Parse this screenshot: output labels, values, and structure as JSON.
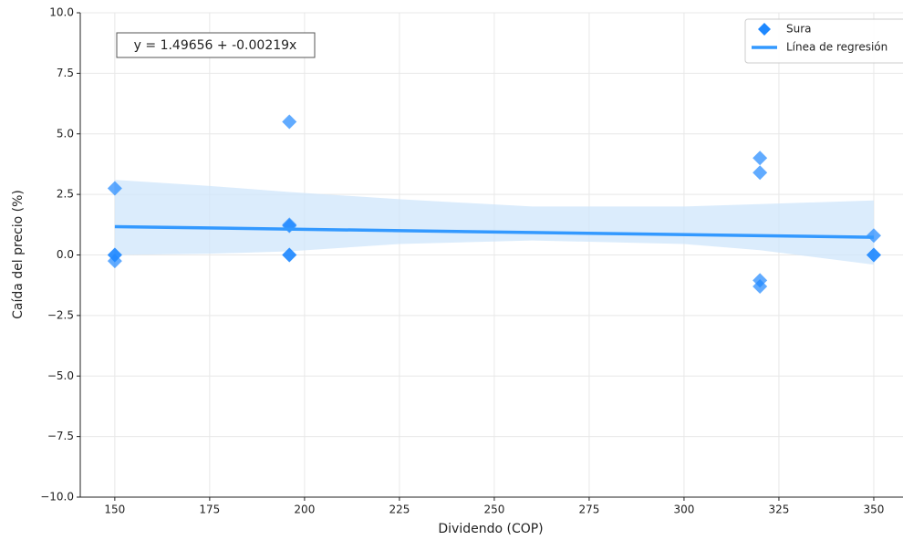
{
  "chart_data": {
    "type": "scatter",
    "xlabel": "Dividendo (COP)",
    "ylabel": "Caída del precio (%)",
    "annotation": "y = 1.49656 + -0.00219x",
    "xlim": [
      140.9,
      357.7
    ],
    "ylim": [
      -10,
      10
    ],
    "xticks": [
      150,
      175,
      200,
      225,
      250,
      275,
      300,
      325,
      350
    ],
    "yticks": [
      {
        "value": -10,
        "label": "−10.0"
      },
      {
        "value": -7.5,
        "label": "−7.5"
      },
      {
        "value": -5,
        "label": "−5.0"
      },
      {
        "value": -2.5,
        "label": "−2.5"
      },
      {
        "value": 0,
        "label": "0.0"
      },
      {
        "value": 2.5,
        "label": "2.5"
      },
      {
        "value": 5,
        "label": "5.0"
      },
      {
        "value": 7.5,
        "label": "7.5"
      },
      {
        "value": 10,
        "label": "10.0"
      }
    ],
    "grid": true,
    "legend": "upper right",
    "series": [
      {
        "name": "Sura",
        "color": "#1e88ff",
        "x": [
          150,
          150,
          150,
          150,
          196,
          196,
          196,
          196,
          196,
          320,
          320,
          320,
          320,
          350,
          350,
          350
        ],
        "values": [
          2.75,
          0,
          0,
          -0.25,
          5.5,
          1.2,
          1.25,
          0,
          0,
          4.0,
          3.4,
          -1.05,
          -1.3,
          0.8,
          0,
          0
        ]
      },
      {
        "name": "Línea de regresión",
        "color": "#3399ff",
        "x": [
          150,
          350
        ],
        "values": [
          1.168,
          0.73
        ]
      }
    ],
    "confidence_band": {
      "color": "#cfe6fb",
      "x": [
        150,
        175,
        196,
        225,
        260,
        300,
        320,
        350
      ],
      "upper": [
        3.1,
        2.85,
        2.6,
        2.3,
        2.0,
        2.0,
        2.1,
        2.25
      ],
      "lower": [
        0.0,
        0.05,
        0.15,
        0.45,
        0.6,
        0.45,
        0.2,
        -0.4
      ]
    }
  }
}
